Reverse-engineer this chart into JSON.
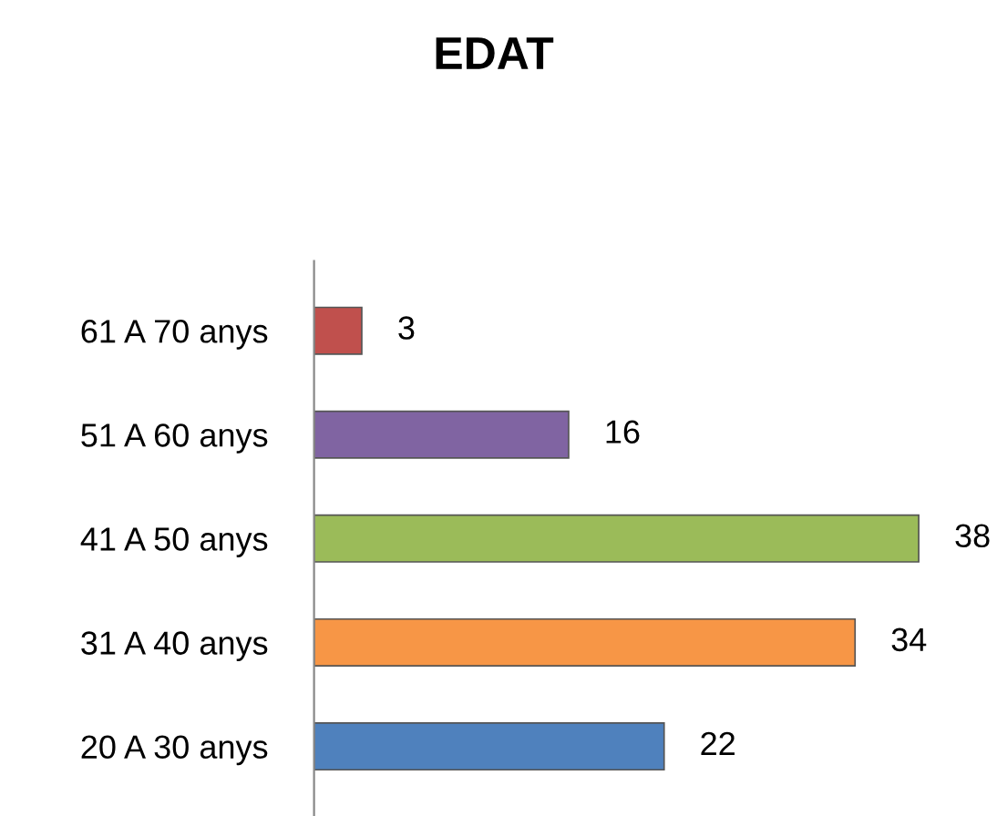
{
  "chart_data": {
    "type": "bar",
    "orientation": "horizontal",
    "title": "EDAT",
    "categories": [
      "61 A 70 anys",
      "51 A 60 anys",
      "41 A 50 anys",
      "31 A 40 anys",
      "20 A 30 anys"
    ],
    "values": [
      3,
      16,
      38,
      34,
      22
    ],
    "colors": [
      "#c0504d",
      "#8064a2",
      "#9bbb59",
      "#f79646",
      "#4f81bd"
    ],
    "data_labels": true,
    "grid": false,
    "legend": false,
    "tick_labels": "y"
  }
}
